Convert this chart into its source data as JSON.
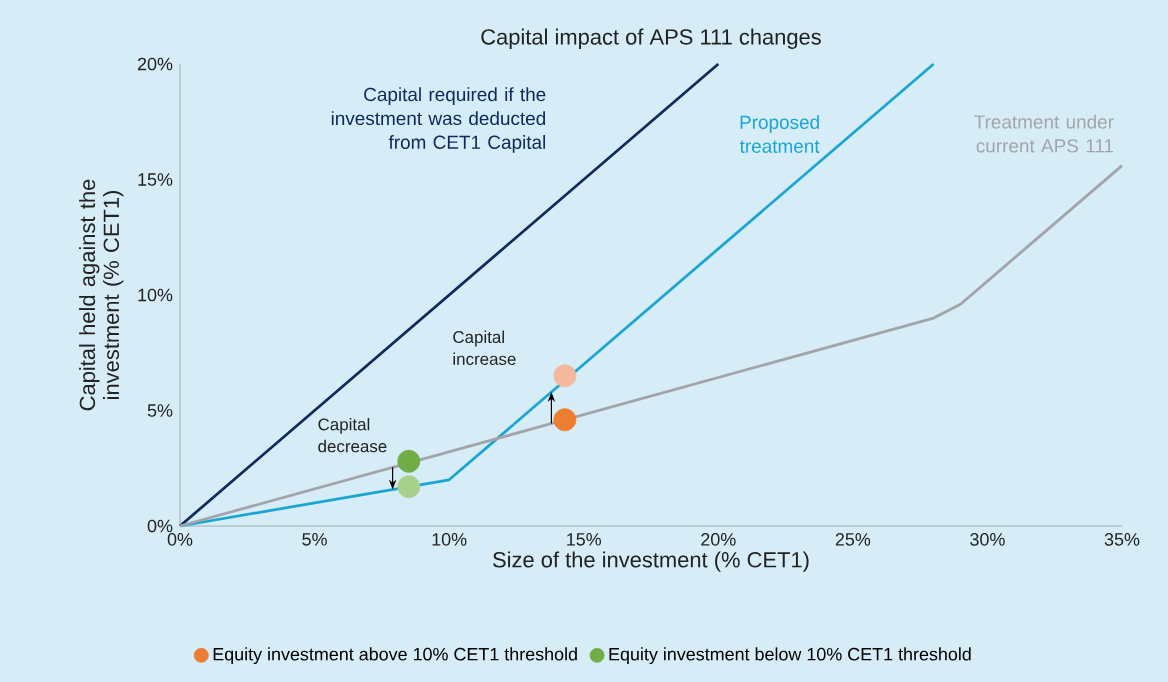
{
  "chart_data": {
    "type": "line",
    "title": "Capital impact of APS 111 changes",
    "xlabel": "Size of the investment (% CET1)",
    "ylabel": "Capital held against the investment (% CET1)",
    "xlim": [
      0,
      35
    ],
    "ylim": [
      0,
      20
    ],
    "xticks": [
      {
        "value": 0,
        "label": "0%"
      },
      {
        "value": 5,
        "label": "5%"
      },
      {
        "value": 10,
        "label": "10%"
      },
      {
        "value": 15,
        "label": "15%"
      },
      {
        "value": 20,
        "label": "20%"
      },
      {
        "value": 25,
        "label": "25%"
      },
      {
        "value": 30,
        "label": "30%"
      },
      {
        "value": 35,
        "label": "35%"
      }
    ],
    "yticks": [
      {
        "value": 0,
        "label": "0%"
      },
      {
        "value": 5,
        "label": "5%"
      },
      {
        "value": 10,
        "label": "10%"
      },
      {
        "value": 15,
        "label": "15%"
      },
      {
        "value": 20,
        "label": "20%"
      }
    ],
    "grid": false,
    "legend": "bottom",
    "series": [
      {
        "name": "Capital required if the investment was deducted from CET1 Capital",
        "color": "#0f2a5c",
        "x": [
          0,
          20
        ],
        "values": [
          0,
          20
        ]
      },
      {
        "name": "Proposed treatment",
        "color": "#1aa6d2",
        "x": [
          0,
          10,
          28
        ],
        "values": [
          0,
          2,
          20
        ]
      },
      {
        "name": "Treatment under current APS 111",
        "color": "#a3a4aa",
        "x": [
          0,
          28,
          29,
          35
        ],
        "values": [
          0,
          9,
          9.6,
          15.6
        ]
      },
      {
        "type": "scatter",
        "marker": "circle",
        "name": "Equity investment above 10% CET1 threshold",
        "color": "#ed7d31",
        "colors": [
          "#ed7d31",
          "#f4b89a"
        ],
        "x": [
          14.3,
          14.3
        ],
        "values": [
          4.6,
          6.5
        ]
      },
      {
        "type": "scatter",
        "marker": "circle",
        "name": "Equity investment below 10% CET1 threshold",
        "color": "#70ad47",
        "colors": [
          "#70ad47",
          "#a8d08d"
        ],
        "x": [
          8.5,
          8.5
        ],
        "values": [
          2.8,
          1.7
        ]
      }
    ],
    "annotations": [
      {
        "text": "Capital increase",
        "x": 13.8,
        "y": 5.8
      },
      {
        "text": "Capital decrease",
        "x": 7.9,
        "y": 1.58
      }
    ]
  }
}
